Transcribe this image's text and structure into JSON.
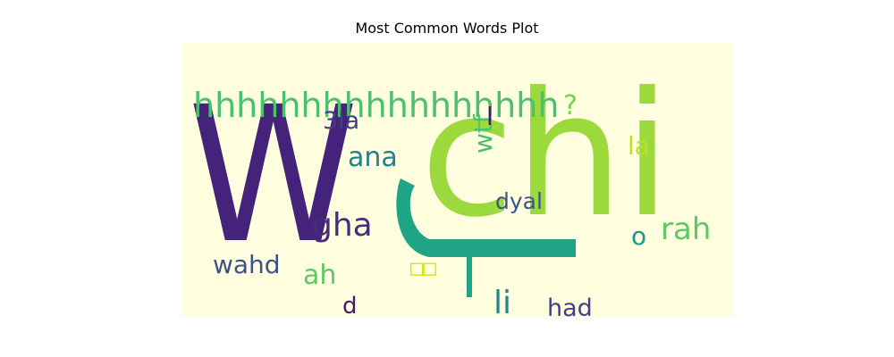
{
  "chart_data": {
    "type": "wordcloud",
    "title": "Most Common Words Plot",
    "background": "#ffffe0",
    "words": [
      {
        "text": "W",
        "color": "#46237a"
      },
      {
        "text": "chi",
        "color": "#9bd93c"
      },
      {
        "text": "f",
        "color": "#20a486"
      },
      {
        "text": "hhhhhhhhhhhhhhhhh",
        "color": "#4ac16d"
      },
      {
        "text": "?",
        "color": "#7ad151"
      },
      {
        "text": "3la",
        "color": "#433e85"
      },
      {
        "text": "wtf",
        "color": "#4ac16d"
      },
      {
        "text": "l",
        "color": "#48186a"
      },
      {
        "text": "ana",
        "color": "#277f8e"
      },
      {
        "text": "la",
        "color": "#bddf26"
      },
      {
        "text": "gha",
        "color": "#472d7b"
      },
      {
        "text": "dyal",
        "color": "#3b528b"
      },
      {
        "text": "o",
        "color": "#1f988b"
      },
      {
        "text": "rah",
        "color": "#5ec962"
      },
      {
        "text": "wahd",
        "color": "#3b528b"
      },
      {
        "text": "ah",
        "color": "#5ec962"
      },
      {
        "text": "□□",
        "color": "#d2e21b"
      },
      {
        "text": "li",
        "color": "#25858e"
      },
      {
        "text": "had",
        "color": "#433e85"
      },
      {
        "text": "d",
        "color": "#48186a"
      }
    ]
  }
}
